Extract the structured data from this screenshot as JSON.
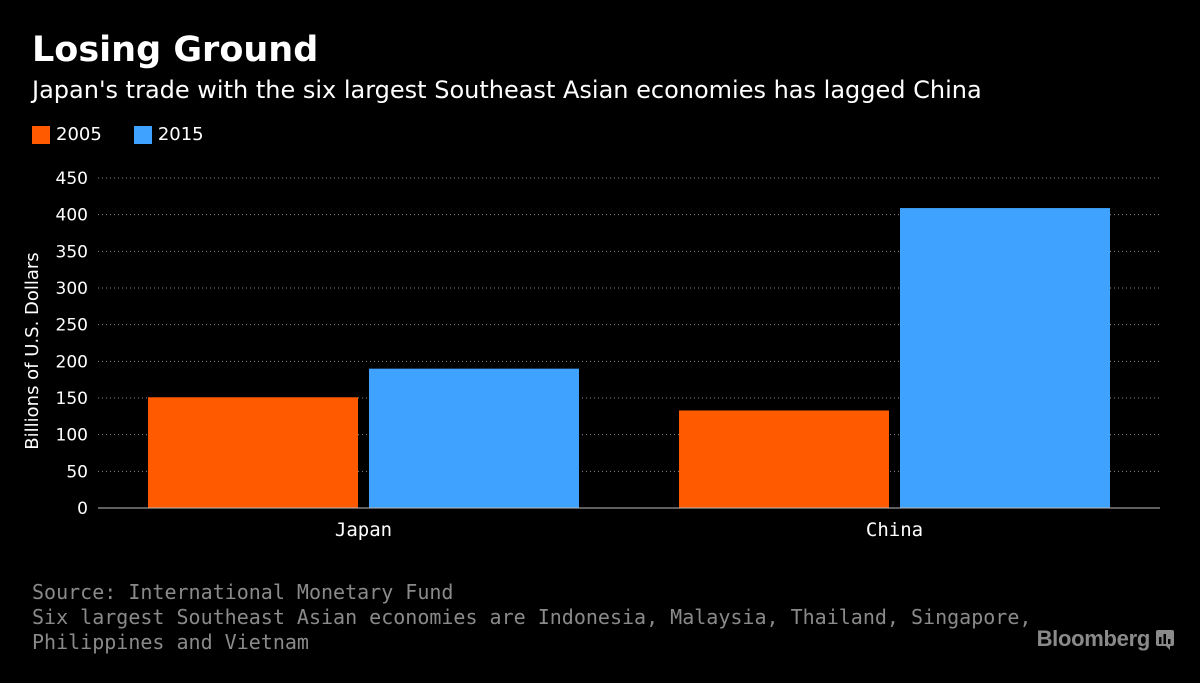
{
  "header": {
    "title": "Losing Ground",
    "subtitle": "Japan's trade with the six largest Southeast Asian economies has lagged China"
  },
  "legend": [
    {
      "label": "2005",
      "color": "#ff5a00"
    },
    {
      "label": "2015",
      "color": "#3fa2ff"
    }
  ],
  "chart_data": {
    "type": "bar",
    "categories": [
      "Japan",
      "China"
    ],
    "series": [
      {
        "name": "2005",
        "values": [
          151,
          133
        ],
        "color": "#ff5a00"
      },
      {
        "name": "2015",
        "values": [
          190,
          409
        ],
        "color": "#3fa2ff"
      }
    ],
    "ylabel": "Billions of U.S. Dollars",
    "ylim": [
      0,
      450
    ],
    "yticks": [
      0,
      50,
      100,
      150,
      200,
      250,
      300,
      350,
      400,
      450
    ],
    "grid": true,
    "legend_position": "top-left"
  },
  "footer": {
    "source": "Source: International Monetary Fund",
    "note_line1": "Six largest Southeast Asian economies are Indonesia, Malaysia, Thailand, Singapore,",
    "note_line2": "Philippines and Vietnam"
  },
  "brand": {
    "name": "Bloomberg",
    "icon": "bloomberg-logo-icon"
  }
}
